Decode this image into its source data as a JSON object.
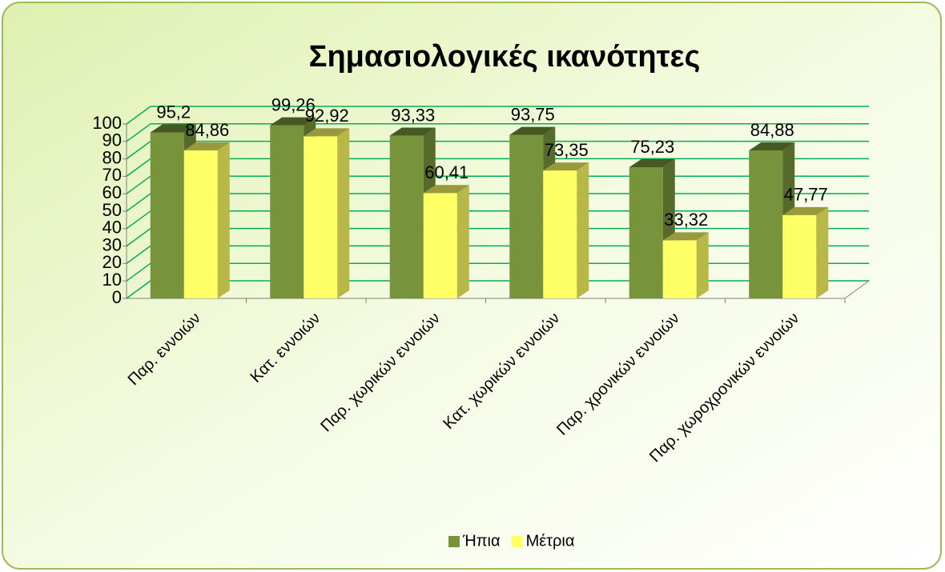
{
  "chart_data": {
    "type": "bar3d",
    "title": "Σημασιολογικές ικανότητες",
    "categories": [
      "Παρ. εννοιών",
      "Κατ. εννοιών",
      "Παρ. χωρικών εννοιών",
      "Κατ. χωρικών εννοιών",
      "Παρ. χρονικών εννοιών",
      "Παρ. χωροχρονικών εννοιών"
    ],
    "series": [
      {
        "name": "Ήπια",
        "color": "#77933c",
        "values": [
          95.2,
          99.26,
          93.33,
          93.75,
          75.23,
          84.88
        ],
        "value_labels": [
          "95,2",
          "99,26",
          "93,33",
          "93,75",
          "75,23",
          "84,88"
        ]
      },
      {
        "name": "Μέτρια",
        "color": "#ffff66",
        "values": [
          84.86,
          92.92,
          60.41,
          73.35,
          33.32,
          47.77
        ],
        "value_labels": [
          "84,86",
          "92,92",
          "60,41",
          "73,35",
          "33,32",
          "47,77"
        ]
      }
    ],
    "ylim": [
      0,
      100
    ],
    "yticks": [
      0,
      10,
      20,
      30,
      40,
      50,
      60,
      70,
      80,
      90,
      100
    ],
    "grid": true,
    "legend": "bottom"
  }
}
